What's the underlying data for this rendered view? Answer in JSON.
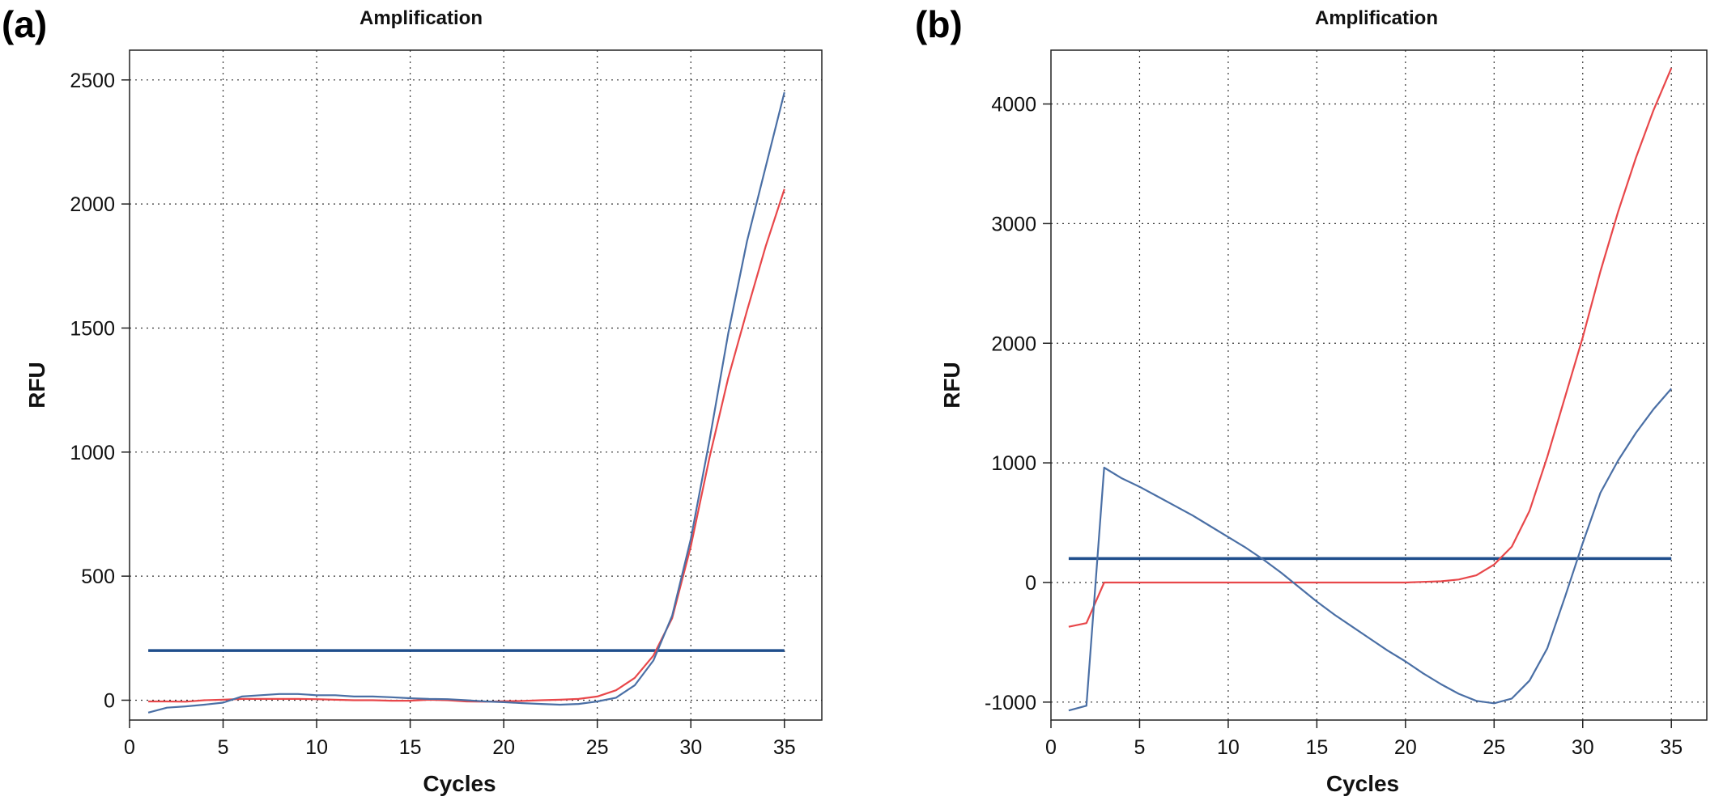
{
  "chart_data": [
    {
      "type": "line",
      "panel_label": "(a)",
      "title": "Amplification",
      "xlabel": "Cycles",
      "ylabel": "RFU",
      "xlim": [
        0,
        37
      ],
      "ylim": [
        -80,
        2620
      ],
      "xticks": [
        0,
        5,
        10,
        15,
        20,
        25,
        30,
        35
      ],
      "yticks": [
        0,
        500,
        1000,
        1500,
        2000,
        2500
      ],
      "grid": true,
      "threshold": {
        "value": 200,
        "x": [
          1,
          35
        ],
        "color": "#1f4e8c"
      },
      "series": [
        {
          "color": "#e8474a",
          "x": [
            1,
            2,
            3,
            4,
            5,
            6,
            7,
            8,
            9,
            10,
            11,
            12,
            13,
            14,
            15,
            16,
            17,
            18,
            19,
            20,
            21,
            22,
            23,
            24,
            25,
            26,
            27,
            28,
            29,
            30,
            31,
            32,
            33,
            34,
            35
          ],
          "y": [
            -5,
            -5,
            -6,
            0,
            2,
            5,
            5,
            5,
            5,
            4,
            2,
            0,
            0,
            -2,
            -2,
            2,
            0,
            -5,
            -6,
            -4,
            -3,
            0,
            2,
            5,
            15,
            40,
            90,
            180,
            330,
            620,
            980,
            1300,
            1570,
            1830,
            2060
          ]
        },
        {
          "color": "#4a6fa5",
          "x": [
            1,
            2,
            3,
            4,
            5,
            6,
            7,
            8,
            9,
            10,
            11,
            12,
            13,
            14,
            15,
            16,
            17,
            18,
            19,
            20,
            21,
            22,
            23,
            24,
            25,
            26,
            27,
            28,
            29,
            30,
            31,
            32,
            33,
            34,
            35
          ],
          "y": [
            -50,
            -30,
            -25,
            -18,
            -10,
            15,
            20,
            25,
            25,
            20,
            20,
            15,
            15,
            12,
            8,
            5,
            4,
            0,
            -5,
            -8,
            -12,
            -15,
            -18,
            -15,
            -5,
            10,
            60,
            160,
            340,
            650,
            1050,
            1480,
            1850,
            2150,
            2450
          ]
        }
      ]
    },
    {
      "type": "line",
      "panel_label": "(b)",
      "title": "Amplification",
      "xlabel": "Cycles",
      "ylabel": "RFU",
      "xlim": [
        0,
        37
      ],
      "ylim": [
        -1150,
        4450
      ],
      "xticks": [
        0,
        5,
        10,
        15,
        20,
        25,
        30,
        35
      ],
      "yticks": [
        -1000,
        0,
        1000,
        2000,
        3000,
        4000
      ],
      "grid": true,
      "threshold": {
        "value": 200,
        "x": [
          1,
          35
        ],
        "color": "#1f4e8c"
      },
      "series": [
        {
          "color": "#e8474a",
          "x": [
            1,
            2,
            3,
            4,
            5,
            6,
            7,
            8,
            9,
            10,
            11,
            12,
            13,
            14,
            15,
            16,
            17,
            18,
            19,
            20,
            21,
            22,
            23,
            24,
            25,
            26,
            27,
            28,
            29,
            30,
            31,
            32,
            33,
            34,
            35
          ],
          "y": [
            -370,
            -340,
            0,
            0,
            0,
            0,
            0,
            0,
            0,
            0,
            0,
            0,
            0,
            0,
            0,
            0,
            0,
            0,
            0,
            0,
            5,
            10,
            25,
            60,
            150,
            300,
            600,
            1050,
            1550,
            2050,
            2600,
            3100,
            3550,
            3950,
            4300
          ]
        },
        {
          "color": "#4a6fa5",
          "x": [
            1,
            2,
            3,
            4,
            5,
            6,
            7,
            8,
            9,
            10,
            11,
            12,
            13,
            14,
            15,
            16,
            17,
            18,
            19,
            20,
            21,
            22,
            23,
            24,
            25,
            26,
            27,
            28,
            29,
            30,
            31,
            32,
            33,
            34,
            35
          ],
          "y": [
            -1070,
            -1030,
            960,
            870,
            800,
            720,
            640,
            560,
            470,
            380,
            290,
            190,
            80,
            -40,
            -160,
            -270,
            -370,
            -470,
            -570,
            -660,
            -760,
            -850,
            -930,
            -990,
            -1010,
            -970,
            -820,
            -550,
            -120,
            330,
            750,
            1020,
            1250,
            1450,
            1620
          ]
        }
      ]
    }
  ]
}
